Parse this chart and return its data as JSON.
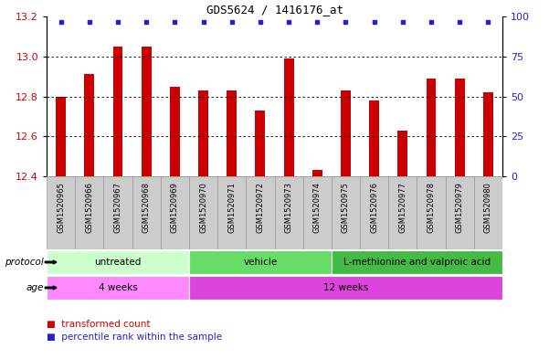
{
  "title": "GDS5624 / 1416176_at",
  "samples": [
    "GSM1520965",
    "GSM1520966",
    "GSM1520967",
    "GSM1520968",
    "GSM1520969",
    "GSM1520970",
    "GSM1520971",
    "GSM1520972",
    "GSM1520973",
    "GSM1520974",
    "GSM1520975",
    "GSM1520976",
    "GSM1520977",
    "GSM1520978",
    "GSM1520979",
    "GSM1520980"
  ],
  "transformed_counts": [
    12.8,
    12.91,
    13.05,
    13.05,
    12.85,
    12.83,
    12.83,
    12.73,
    12.99,
    12.43,
    12.83,
    12.78,
    12.63,
    12.89,
    12.89,
    12.82
  ],
  "percentile_ranks": [
    100,
    100,
    100,
    100,
    100,
    100,
    100,
    100,
    100,
    100,
    100,
    100,
    100,
    100,
    100,
    100
  ],
  "bar_color": "#cc0000",
  "dot_color": "#2222cc",
  "ylim_left": [
    12.4,
    13.2
  ],
  "ylim_right": [
    0,
    100
  ],
  "yticks_left": [
    12.4,
    12.6,
    12.8,
    13.0,
    13.2
  ],
  "yticks_right": [
    0,
    25,
    50,
    75,
    100
  ],
  "grid_lines": [
    12.6,
    12.8,
    13.0
  ],
  "protocol_groups": [
    {
      "label": "untreated",
      "start": 0,
      "end": 5,
      "color": "#ccffcc"
    },
    {
      "label": "vehicle",
      "start": 5,
      "end": 10,
      "color": "#66dd66"
    },
    {
      "label": "L-methionine and valproic acid",
      "start": 10,
      "end": 16,
      "color": "#44bb44"
    }
  ],
  "age_groups": [
    {
      "label": "4 weeks",
      "start": 0,
      "end": 5,
      "color": "#ff88ff"
    },
    {
      "label": "12 weeks",
      "start": 5,
      "end": 16,
      "color": "#dd44dd"
    }
  ],
  "protocol_label": "protocol",
  "age_label": "age",
  "legend_bar_label": "transformed count",
  "legend_dot_label": "percentile rank within the sample",
  "background_color": "#ffffff",
  "tick_label_color_left": "#cc0000",
  "tick_label_color_right": "#2222cc",
  "sample_label_bg": "#cccccc",
  "grid_color": "#000000"
}
